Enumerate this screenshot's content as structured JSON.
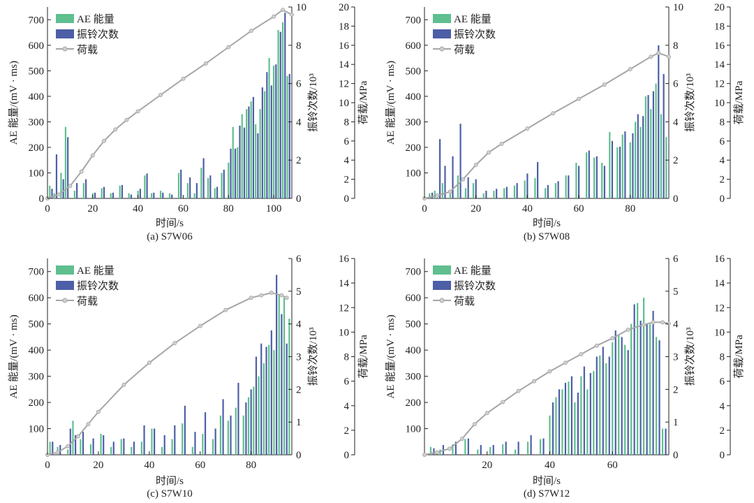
{
  "figure": {
    "colors": {
      "ae": "#5fbf8f",
      "ring": "#4d5fa6",
      "load_line": "#a6a6a6",
      "load_marker": "#d0d0d0",
      "axis": "#222222"
    }
  },
  "chart_data": [
    {
      "type": "bar",
      "caption": "(a) S7W06",
      "xlabel": "时间/s",
      "ylabel_left": "AE 能量/(mV · ms)",
      "ylabel_right1": "振铃次数/10³",
      "ylabel_right2": "荷载/MPa",
      "xlim": [
        0,
        108
      ],
      "xticks": [
        0,
        20,
        40,
        60,
        80,
        100
      ],
      "ylim_left": [
        0,
        750
      ],
      "yticks_left": [
        0,
        100,
        200,
        300,
        400,
        500,
        600,
        700
      ],
      "ylim_right1": [
        0,
        10
      ],
      "yticks_right1": [
        0,
        2,
        4,
        6,
        8,
        10
      ],
      "ylim_right2": [
        0,
        20
      ],
      "yticks_right2": [
        0,
        2,
        4,
        6,
        8,
        10,
        12,
        14,
        16,
        18,
        20
      ],
      "legend": [
        "AE 能量",
        "振铃次数",
        "荷载"
      ],
      "load": {
        "x": [
          0,
          5,
          10,
          15,
          20,
          25,
          30,
          35,
          40,
          50,
          60,
          70,
          80,
          90,
          100,
          104,
          108
        ],
        "y": [
          0,
          0.4,
          1.3,
          2.8,
          4.5,
          6.0,
          7.2,
          8.2,
          9.1,
          10.8,
          12.5,
          14.1,
          15.8,
          17.5,
          19.0,
          19.7,
          19.2
        ]
      },
      "ae": {
        "x": [
          1,
          3,
          6,
          8,
          12,
          16,
          20,
          24,
          28,
          32,
          36,
          40,
          43,
          46,
          50,
          54,
          58,
          62,
          65,
          68,
          71,
          74,
          77,
          80,
          82,
          84,
          86,
          88,
          90,
          92,
          94,
          96,
          98,
          100,
          102,
          104,
          106
        ],
        "values": [
          50,
          20,
          100,
          280,
          30,
          60,
          20,
          40,
          20,
          50,
          20,
          30,
          90,
          20,
          30,
          20,
          100,
          60,
          20,
          120,
          80,
          40,
          100,
          140,
          280,
          200,
          330,
          350,
          380,
          290,
          350,
          420,
          550,
          520,
          660,
          690,
          480
        ]
      },
      "ring": {
        "x": [
          2,
          4,
          7,
          9,
          13,
          17,
          21,
          25,
          29,
          33,
          37,
          41,
          44,
          47,
          51,
          55,
          59,
          63,
          66,
          69,
          72,
          75,
          78,
          81,
          83,
          85,
          87,
          89,
          91,
          93,
          95,
          97,
          99,
          101,
          103,
          105,
          107
        ],
        "values": [
          0.5,
          2.3,
          1.0,
          3.2,
          0.8,
          1.0,
          0.3,
          0.6,
          0.3,
          0.7,
          0.2,
          0.5,
          1.3,
          0.3,
          0.3,
          0.2,
          1.5,
          1.1,
          0.8,
          2.1,
          1.2,
          0.6,
          1.5,
          2.6,
          2.6,
          3.8,
          3.7,
          4.8,
          5.3,
          3.4,
          5.8,
          6.6,
          5.9,
          7.0,
          8.7,
          9.7,
          6.5
        ]
      }
    },
    {
      "type": "bar",
      "caption": "(b) S7W08",
      "xlabel": "时间/s",
      "ylabel_left": "AE 能量/(mV · ms)",
      "ylabel_right1": "振铃次数/10³",
      "ylabel_right2": "荷载/MPa",
      "xlim": [
        0,
        95
      ],
      "xticks": [
        0,
        20,
        40,
        60,
        80
      ],
      "ylim_left": [
        0,
        750
      ],
      "yticks_left": [
        100,
        200,
        300,
        400,
        500,
        600,
        700
      ],
      "ylim_right1": [
        0,
        10
      ],
      "yticks_right1": [
        0,
        2,
        4,
        6,
        8,
        10
      ],
      "ylim_right2": [
        0,
        20
      ],
      "yticks_right2": [
        0,
        2,
        4,
        6,
        8,
        10,
        12,
        14,
        16,
        18,
        20
      ],
      "legend": [
        "AE 能量",
        "振铃次数",
        "荷载"
      ],
      "load": {
        "x": [
          0,
          5,
          10,
          15,
          20,
          25,
          30,
          40,
          50,
          60,
          70,
          80,
          88,
          91,
          95
        ],
        "y": [
          0,
          0.3,
          0.7,
          2.0,
          3.5,
          4.8,
          5.7,
          7.3,
          8.9,
          10.4,
          11.9,
          13.5,
          14.8,
          15.2,
          14.8
        ]
      },
      "ae": {
        "x": [
          2,
          4,
          7,
          10,
          13,
          16,
          19,
          23,
          27,
          31,
          35,
          39,
          43,
          47,
          51,
          55,
          59,
          63,
          66,
          69,
          72,
          75,
          77,
          80,
          82,
          84,
          86,
          88,
          90,
          92,
          94
        ],
        "values": [
          20,
          30,
          60,
          20,
          90,
          40,
          60,
          20,
          30,
          40,
          50,
          70,
          80,
          40,
          60,
          90,
          140,
          180,
          160,
          140,
          260,
          200,
          250,
          220,
          300,
          280,
          400,
          350,
          450,
          330,
          240
        ]
      },
      "ring": {
        "x": [
          3,
          6,
          8,
          11,
          14,
          17,
          20,
          24,
          28,
          32,
          36,
          40,
          44,
          48,
          52,
          56,
          60,
          64,
          67,
          70,
          73,
          76,
          78,
          81,
          83,
          85,
          87,
          89,
          91,
          93
        ],
        "values": [
          0.3,
          3.1,
          1.7,
          2.2,
          3.9,
          1.1,
          1.0,
          0.4,
          0.5,
          0.6,
          0.8,
          1.3,
          1.9,
          0.7,
          0.9,
          1.2,
          1.7,
          2.5,
          2.2,
          1.7,
          3.0,
          2.7,
          3.5,
          3.4,
          4.4,
          4.3,
          5.4,
          5.6,
          8.0,
          6.5
        ]
      }
    },
    {
      "type": "bar",
      "caption": "(c) S7W10",
      "xlabel": "时间/s",
      "ylabel_left": "AE 能量/(mV · ms)",
      "ylabel_right1": "振铃次数/10³",
      "ylabel_right2": "荷载/MPa",
      "xlim": [
        0,
        96
      ],
      "xticks": [
        0,
        20,
        40,
        60,
        80
      ],
      "ylim_left": [
        0,
        750
      ],
      "yticks_left": [
        100,
        200,
        300,
        400,
        500,
        600,
        700
      ],
      "ylim_right1": [
        0,
        6
      ],
      "yticks_right1": [
        0,
        1,
        2,
        3,
        4,
        5,
        6
      ],
      "ylim_right2": [
        0,
        16
      ],
      "yticks_right2": [
        0,
        2,
        4,
        6,
        8,
        10,
        12,
        14,
        16
      ],
      "legend": [
        "AE 能量",
        "振铃次数",
        "荷载"
      ],
      "load": {
        "x": [
          0,
          4,
          8,
          12,
          16,
          20,
          30,
          40,
          50,
          60,
          70,
          80,
          84,
          88,
          92,
          94
        ],
        "y": [
          0,
          0.2,
          0.7,
          1.5,
          2.5,
          3.5,
          5.7,
          7.5,
          9.1,
          10.5,
          11.8,
          12.8,
          13.0,
          13.2,
          13.0,
          12.8
        ]
      },
      "ae": {
        "x": [
          1,
          4,
          8,
          10,
          13,
          17,
          21,
          25,
          29,
          33,
          37,
          41,
          45,
          49,
          53,
          57,
          61,
          65,
          68,
          71,
          74,
          77,
          79,
          81,
          83,
          85,
          87,
          89,
          91,
          93,
          95
        ],
        "values": [
          50,
          30,
          20,
          130,
          60,
          40,
          80,
          30,
          60,
          30,
          50,
          100,
          30,
          60,
          120,
          30,
          80,
          60,
          150,
          130,
          180,
          150,
          220,
          260,
          300,
          350,
          420,
          400,
          610,
          600,
          520
        ]
      },
      "ring": {
        "x": [
          2,
          5,
          9,
          11,
          14,
          18,
          22,
          26,
          30,
          34,
          38,
          42,
          46,
          50,
          54,
          58,
          62,
          66,
          69,
          72,
          75,
          78,
          80,
          82,
          84,
          86,
          88,
          90,
          92,
          94
        ],
        "values": [
          0.4,
          0.3,
          0.8,
          0.6,
          0.7,
          0.5,
          0.6,
          0.4,
          0.5,
          0.4,
          0.9,
          0.8,
          0.6,
          0.9,
          1.5,
          0.7,
          1.3,
          0.8,
          1.7,
          1.2,
          2.2,
          1.6,
          2.0,
          3.0,
          3.4,
          3.3,
          3.8,
          5.5,
          4.3,
          3.4
        ]
      }
    },
    {
      "type": "bar",
      "caption": "(d) S7W12",
      "xlabel": "时间/s",
      "ylabel_left": "AE 能量/(mV · ms)",
      "ylabel_right1": "振铃次数/10³",
      "ylabel_right2": "荷载/MPa",
      "xlim": [
        0,
        78
      ],
      "xticks": [
        20,
        40,
        60
      ],
      "ylim_left": [
        0,
        750
      ],
      "yticks_left": [
        100,
        200,
        300,
        400,
        500,
        600,
        700
      ],
      "ylim_right1": [
        0,
        6
      ],
      "yticks_right1": [
        0,
        1,
        2,
        3,
        4,
        5,
        6
      ],
      "ylim_right2": [
        0,
        16
      ],
      "yticks_right2": [
        0,
        2,
        4,
        6,
        8,
        10,
        12,
        14,
        16
      ],
      "legend": [
        "AE 能量",
        "振铃次数",
        "荷载"
      ],
      "load": {
        "x": [
          0,
          4,
          8,
          12,
          16,
          20,
          25,
          30,
          35,
          40,
          45,
          50,
          55,
          60,
          65,
          70,
          73,
          76,
          78
        ],
        "y": [
          0,
          0.2,
          0.5,
          1.3,
          2.5,
          3.4,
          4.3,
          5.2,
          6.0,
          6.8,
          7.5,
          8.2,
          8.9,
          9.5,
          10.2,
          10.6,
          10.8,
          10.8,
          10.7
        ]
      },
      "ae": {
        "x": [
          2,
          5,
          9,
          13,
          17,
          21,
          25,
          29,
          33,
          37,
          40,
          42,
          44,
          46,
          48,
          50,
          52,
          54,
          56,
          58,
          60,
          62,
          64,
          66,
          68,
          70,
          72,
          74,
          76
        ],
        "values": [
          30,
          20,
          40,
          60,
          20,
          30,
          40,
          20,
          50,
          60,
          150,
          220,
          250,
          280,
          200,
          300,
          250,
          320,
          380,
          350,
          430,
          460,
          420,
          500,
          580,
          600,
          500,
          450,
          100
        ]
      },
      "ring": {
        "x": [
          3,
          6,
          10,
          14,
          18,
          22,
          26,
          30,
          34,
          38,
          41,
          43,
          45,
          47,
          49,
          51,
          53,
          55,
          57,
          59,
          61,
          63,
          65,
          67,
          69,
          71,
          73,
          75,
          77
        ],
        "values": [
          0.2,
          0.3,
          0.4,
          0.5,
          0.3,
          0.3,
          0.4,
          0.4,
          0.6,
          0.5,
          1.6,
          2.0,
          2.2,
          2.4,
          1.9,
          2.7,
          2.5,
          3.0,
          3.3,
          3.0,
          3.8,
          3.6,
          3.2,
          4.6,
          4.1,
          4.0,
          4.4,
          3.5,
          0.8
        ]
      }
    }
  ]
}
